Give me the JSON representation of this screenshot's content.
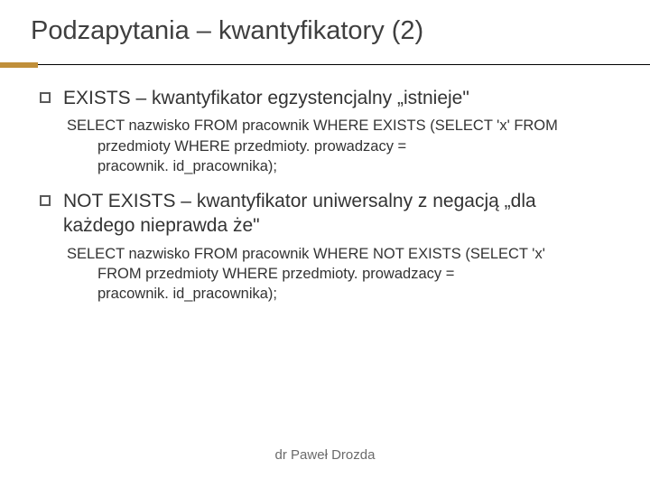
{
  "accent_color": "#c08f3a",
  "title": "Podzapytania – kwantyfikatory (2)",
  "items": [
    {
      "heading": "EXISTS – kwantyfikator egzystencjalny „istnieje\"",
      "code_lines": [
        "SELECT nazwisko FROM pracownik WHERE EXISTS (SELECT 'x' FROM",
        "przedmioty WHERE przedmioty. prowadzacy =",
        "pracownik. id_pracownika);"
      ]
    },
    {
      "heading": "NOT EXISTS – kwantyfikator uniwersalny z negacją  „dla każdego nieprawda że\"",
      "code_lines": [
        "SELECT nazwisko FROM pracownik WHERE NOT EXISTS (SELECT 'x'",
        "FROM przedmioty WHERE przedmioty. prowadzacy =",
        "pracownik. id_pracownika);"
      ]
    }
  ],
  "footer": "dr Paweł Drozda"
}
